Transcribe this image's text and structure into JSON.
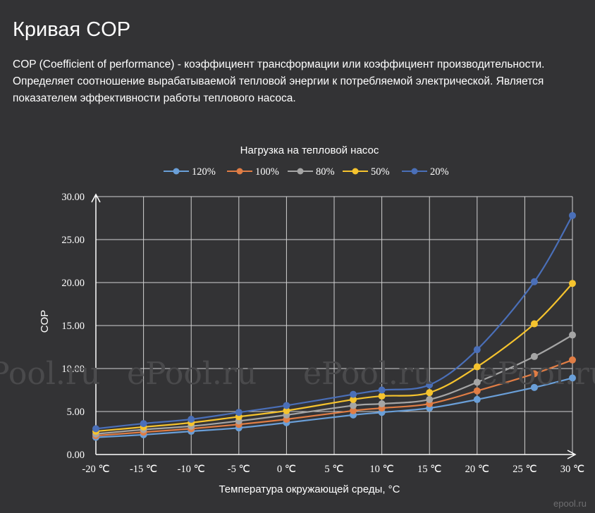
{
  "page": {
    "title": "Кривая COP",
    "description_lines": [
      "COP (Coefficient of performance) - коэффициент трансформации или коэффициент производительности.",
      "Определяет соотношение вырабатываемой тепловой энергии к потребляемой электрической. Является",
      "показателем эффективности работы теплового насоса."
    ]
  },
  "watermarks": [
    "ePool.ru",
    "ePool.ru",
    "ePool.ru",
    "ePool.ru"
  ],
  "corner_watermark": "epool.ru",
  "chart_data": {
    "type": "line",
    "title": "Нагрузка на тепловой насос",
    "xlabel": "Температура окружающей среды, °C",
    "ylabel": "COP",
    "x": [
      -20,
      -15,
      -10,
      -5,
      0,
      5,
      10,
      15,
      20,
      25,
      30
    ],
    "x_tick_labels": [
      "-20 ℃",
      "-15 ℃",
      "-10 ℃",
      "-5 ℃",
      "0 ℃",
      "5 ℃",
      "10 ℃",
      "15 ℃",
      "20 ℃",
      "25 ℃",
      "30 ℃"
    ],
    "y_tick_labels": [
      "0.00",
      "5.00",
      "10.00",
      "15.00",
      "20.00",
      "25.00",
      "30.00"
    ],
    "ylim": [
      0,
      30
    ],
    "grid": true,
    "legend_position": "top",
    "series": [
      {
        "name": "120%",
        "color": "#6a9fd8",
        "points": [
          [
            -20,
            2.0
          ],
          [
            -15,
            2.3
          ],
          [
            -10,
            2.7
          ],
          [
            -5,
            3.1
          ],
          [
            0,
            3.7
          ],
          [
            7,
            4.6
          ],
          [
            10,
            4.9
          ],
          [
            15,
            5.4
          ],
          [
            20,
            6.4
          ],
          [
            26,
            7.8
          ],
          [
            30,
            8.9
          ]
        ]
      },
      {
        "name": "100%",
        "color": "#e07d45",
        "points": [
          [
            -20,
            2.2
          ],
          [
            -15,
            2.6
          ],
          [
            -10,
            3.0
          ],
          [
            -5,
            3.5
          ],
          [
            0,
            4.1
          ],
          [
            7,
            5.1
          ],
          [
            10,
            5.4
          ],
          [
            15,
            5.9
          ],
          [
            20,
            7.4
          ],
          [
            26,
            9.4
          ],
          [
            30,
            11.0
          ]
        ]
      },
      {
        "name": "80%",
        "color": "#a5a5a5",
        "points": [
          [
            -20,
            2.4
          ],
          [
            -15,
            2.9
          ],
          [
            -10,
            3.3
          ],
          [
            -5,
            3.9
          ],
          [
            0,
            4.6
          ],
          [
            7,
            5.7
          ],
          [
            10,
            5.9
          ],
          [
            15,
            6.4
          ],
          [
            20,
            8.4
          ],
          [
            26,
            11.4
          ],
          [
            30,
            13.9
          ]
        ]
      },
      {
        "name": "50%",
        "color": "#f5c32e",
        "points": [
          [
            -20,
            2.7
          ],
          [
            -15,
            3.2
          ],
          [
            -10,
            3.7
          ],
          [
            -5,
            4.4
          ],
          [
            0,
            5.1
          ],
          [
            7,
            6.4
          ],
          [
            10,
            6.8
          ],
          [
            15,
            7.2
          ],
          [
            20,
            10.2
          ],
          [
            26,
            15.2
          ],
          [
            30,
            19.9
          ]
        ]
      },
      {
        "name": "20%",
        "color": "#4a6fb8",
        "points": [
          [
            -20,
            3.0
          ],
          [
            -15,
            3.6
          ],
          [
            -10,
            4.1
          ],
          [
            -5,
            4.9
          ],
          [
            0,
            5.7
          ],
          [
            7,
            7.0
          ],
          [
            10,
            7.5
          ],
          [
            15,
            8.1
          ],
          [
            20,
            12.2
          ],
          [
            26,
            20.1
          ],
          [
            30,
            27.8
          ]
        ]
      }
    ]
  }
}
